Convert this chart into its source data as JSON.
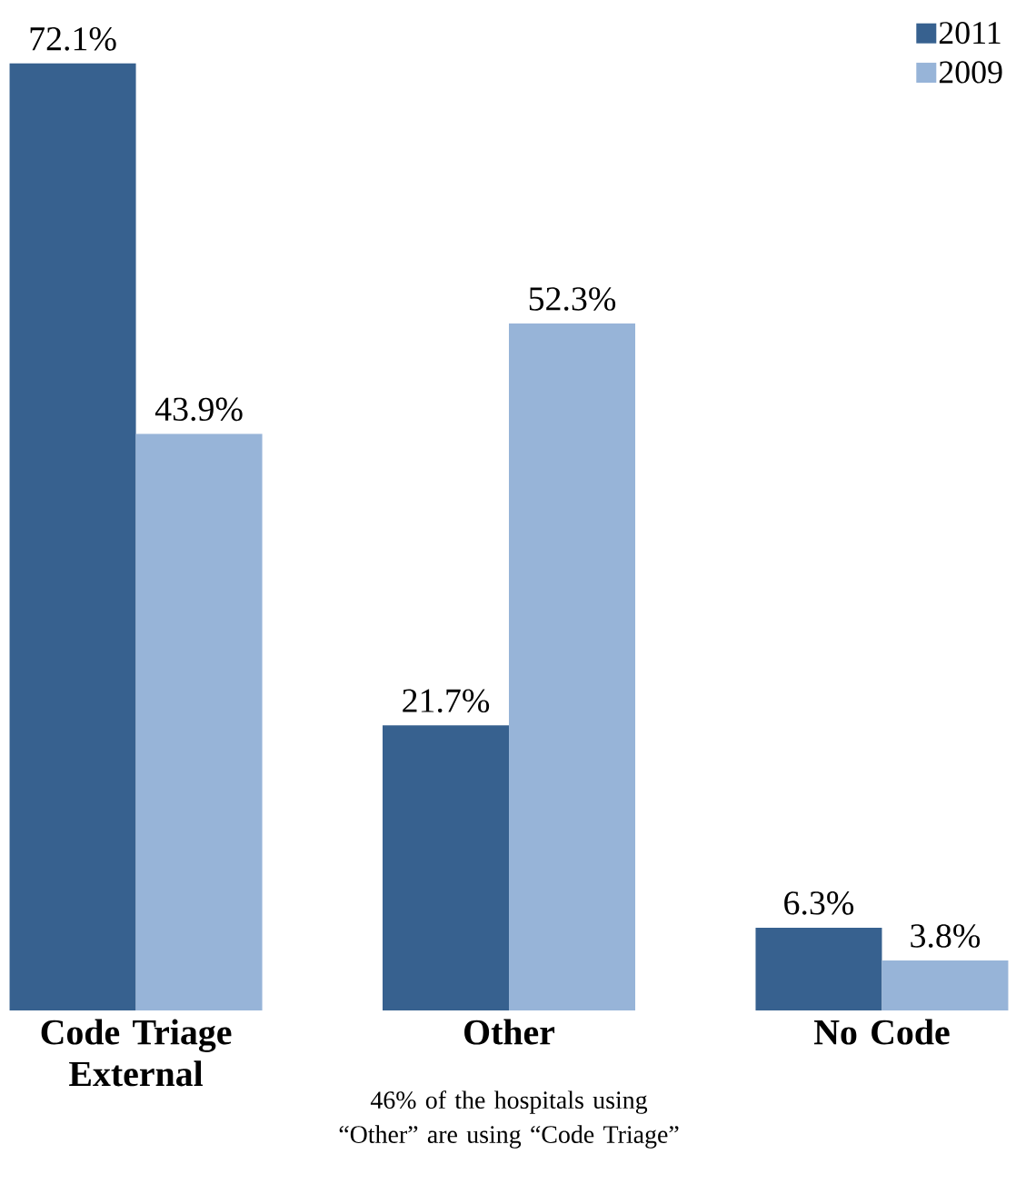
{
  "chart_data": {
    "type": "bar",
    "categories": [
      "Code Triage External",
      "Other",
      "No Code"
    ],
    "series": [
      {
        "name": "2011",
        "color": "#37618f",
        "values": [
          72.1,
          21.7,
          6.3
        ],
        "value_labels": [
          "72.1%",
          "21.7%",
          "6.3%"
        ]
      },
      {
        "name": "2009",
        "color": "#97b4d8",
        "values": [
          43.9,
          52.3,
          3.8
        ],
        "value_labels": [
          "43.9%",
          "52.3%",
          "3.8%"
        ]
      }
    ],
    "legend": "top right",
    "annotations": [
      "46% of the hospitals using “Other” are using “Code Triage”"
    ]
  }
}
